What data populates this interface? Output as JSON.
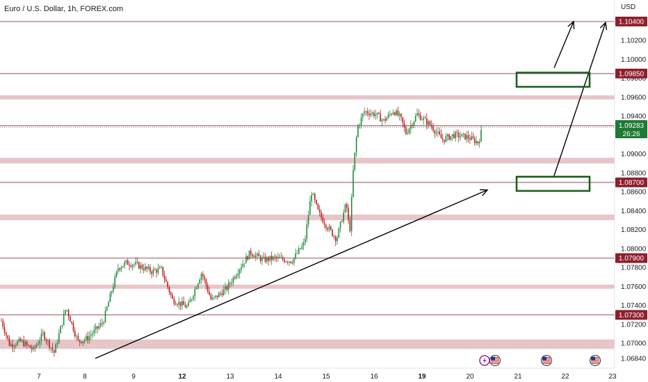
{
  "header": {
    "title": "Euro / U.S. Dollar, 1h, FOREX.com",
    "currency": "USD"
  },
  "price_tag": {
    "price": "1.09283",
    "countdown": "26:26"
  },
  "colors": {
    "up": "#1e8a3b",
    "down": "#b71c1c",
    "level_tag": "#8e1f2c",
    "price_tag": "#1f7a34",
    "zone_fill": "#e7c6ca",
    "level_line": "#b98f95",
    "box": "#1b5e20"
  },
  "chart_data": {
    "type": "candlestick",
    "title": "Euro / U.S. Dollar, 1h, FOREX.com",
    "ylabel": "USD",
    "ylim": [
      1.0668,
      1.1062
    ],
    "x_ticks": [
      {
        "label": "7",
        "bold": false
      },
      {
        "label": "8",
        "bold": false
      },
      {
        "label": "9",
        "bold": false
      },
      {
        "label": "12",
        "bold": true
      },
      {
        "label": "13",
        "bold": false
      },
      {
        "label": "14",
        "bold": false
      },
      {
        "label": "15",
        "bold": false
      },
      {
        "label": "16",
        "bold": false
      },
      {
        "label": "19",
        "bold": true
      },
      {
        "label": "20",
        "bold": false
      },
      {
        "label": "21",
        "bold": false
      },
      {
        "label": "22",
        "bold": false
      },
      {
        "label": "23",
        "bold": false
      }
    ],
    "y_ticks": [
      "1.10200",
      "1.10000",
      "1.09800",
      "1.09600",
      "1.09400",
      "1.09200",
      "1.09000",
      "1.08800",
      "1.08600",
      "1.08400",
      "1.08200",
      "1.08000",
      "1.07800",
      "1.07600",
      "1.07400",
      "1.07200",
      "1.07000",
      "1.06840"
    ],
    "level_tags": [
      "1.10400",
      "1.09850",
      "1.09300",
      "1.08700",
      "1.07900",
      "1.07300"
    ],
    "level_lines": [
      1.104,
      1.0985,
      1.093,
      1.087,
      1.079,
      1.073
    ],
    "zones": [
      {
        "low": 1.0958,
        "high": 1.0962
      },
      {
        "low": 1.089,
        "high": 1.0896
      },
      {
        "low": 1.083,
        "high": 1.0836
      },
      {
        "low": 1.0758,
        "high": 1.0762
      },
      {
        "low": 1.0694,
        "high": 1.0704
      }
    ],
    "path": [
      [
        0,
        1.0728
      ],
      [
        14,
        1.0698
      ],
      [
        30,
        1.0702
      ],
      [
        48,
        1.0693
      ],
      [
        62,
        1.071
      ],
      [
        78,
        1.069
      ],
      [
        95,
        1.0738
      ],
      [
        112,
        1.0702
      ],
      [
        125,
        1.0705
      ],
      [
        148,
        1.0722
      ],
      [
        170,
        1.078
      ],
      [
        182,
        1.0785
      ],
      [
        196,
        1.0783
      ],
      [
        218,
        1.0776
      ],
      [
        232,
        1.0778
      ],
      [
        248,
        1.0746
      ],
      [
        270,
        1.0738
      ],
      [
        290,
        1.0775
      ],
      [
        304,
        1.0745
      ],
      [
        326,
        1.0758
      ],
      [
        345,
        1.078
      ],
      [
        360,
        1.0796
      ],
      [
        378,
        1.0788
      ],
      [
        395,
        1.079
      ],
      [
        420,
        1.0787
      ],
      [
        438,
        1.0806
      ],
      [
        448,
        1.086
      ],
      [
        458,
        1.0838
      ],
      [
        468,
        1.0826
      ],
      [
        484,
        1.081
      ],
      [
        498,
        1.0848
      ],
      [
        503,
        1.0816
      ],
      [
        508,
        1.0882
      ],
      [
        514,
        1.0928
      ],
      [
        524,
        1.0945
      ],
      [
        540,
        1.0942
      ],
      [
        552,
        1.0935
      ],
      [
        566,
        1.0946
      ],
      [
        576,
        1.0938
      ],
      [
        584,
        1.0922
      ],
      [
        600,
        1.0942
      ],
      [
        620,
        1.093
      ],
      [
        636,
        1.0915
      ],
      [
        652,
        1.092
      ],
      [
        672,
        1.0918
      ],
      [
        688,
        1.0912
      ],
      [
        694,
        1.0928
      ]
    ],
    "arrows": [
      {
        "from": [
          137,
          1.0684
        ],
        "to": [
          701,
          1.0862
        ]
      },
      {
        "from": [
          796,
          1.0875
        ],
        "to": [
          871,
          1.1039
        ]
      },
      {
        "from": [
          797,
          1.0991
        ],
        "to": [
          825,
          1.104
        ]
      }
    ],
    "boxes": [
      {
        "x0": 743,
        "x1": 848,
        "low": 1.0971,
        "high": 1.0986
      },
      {
        "x0": 743,
        "x1": 848,
        "low": 1.0861,
        "high": 1.0876
      }
    ],
    "events": [
      {
        "x": 697,
        "icon": "lightning-icon"
      },
      {
        "x": 712,
        "icon": "us-flag-icon"
      },
      {
        "x": 786,
        "icon": "us-flag-icon"
      },
      {
        "x": 856,
        "icon": "us-flag-icon"
      }
    ]
  }
}
